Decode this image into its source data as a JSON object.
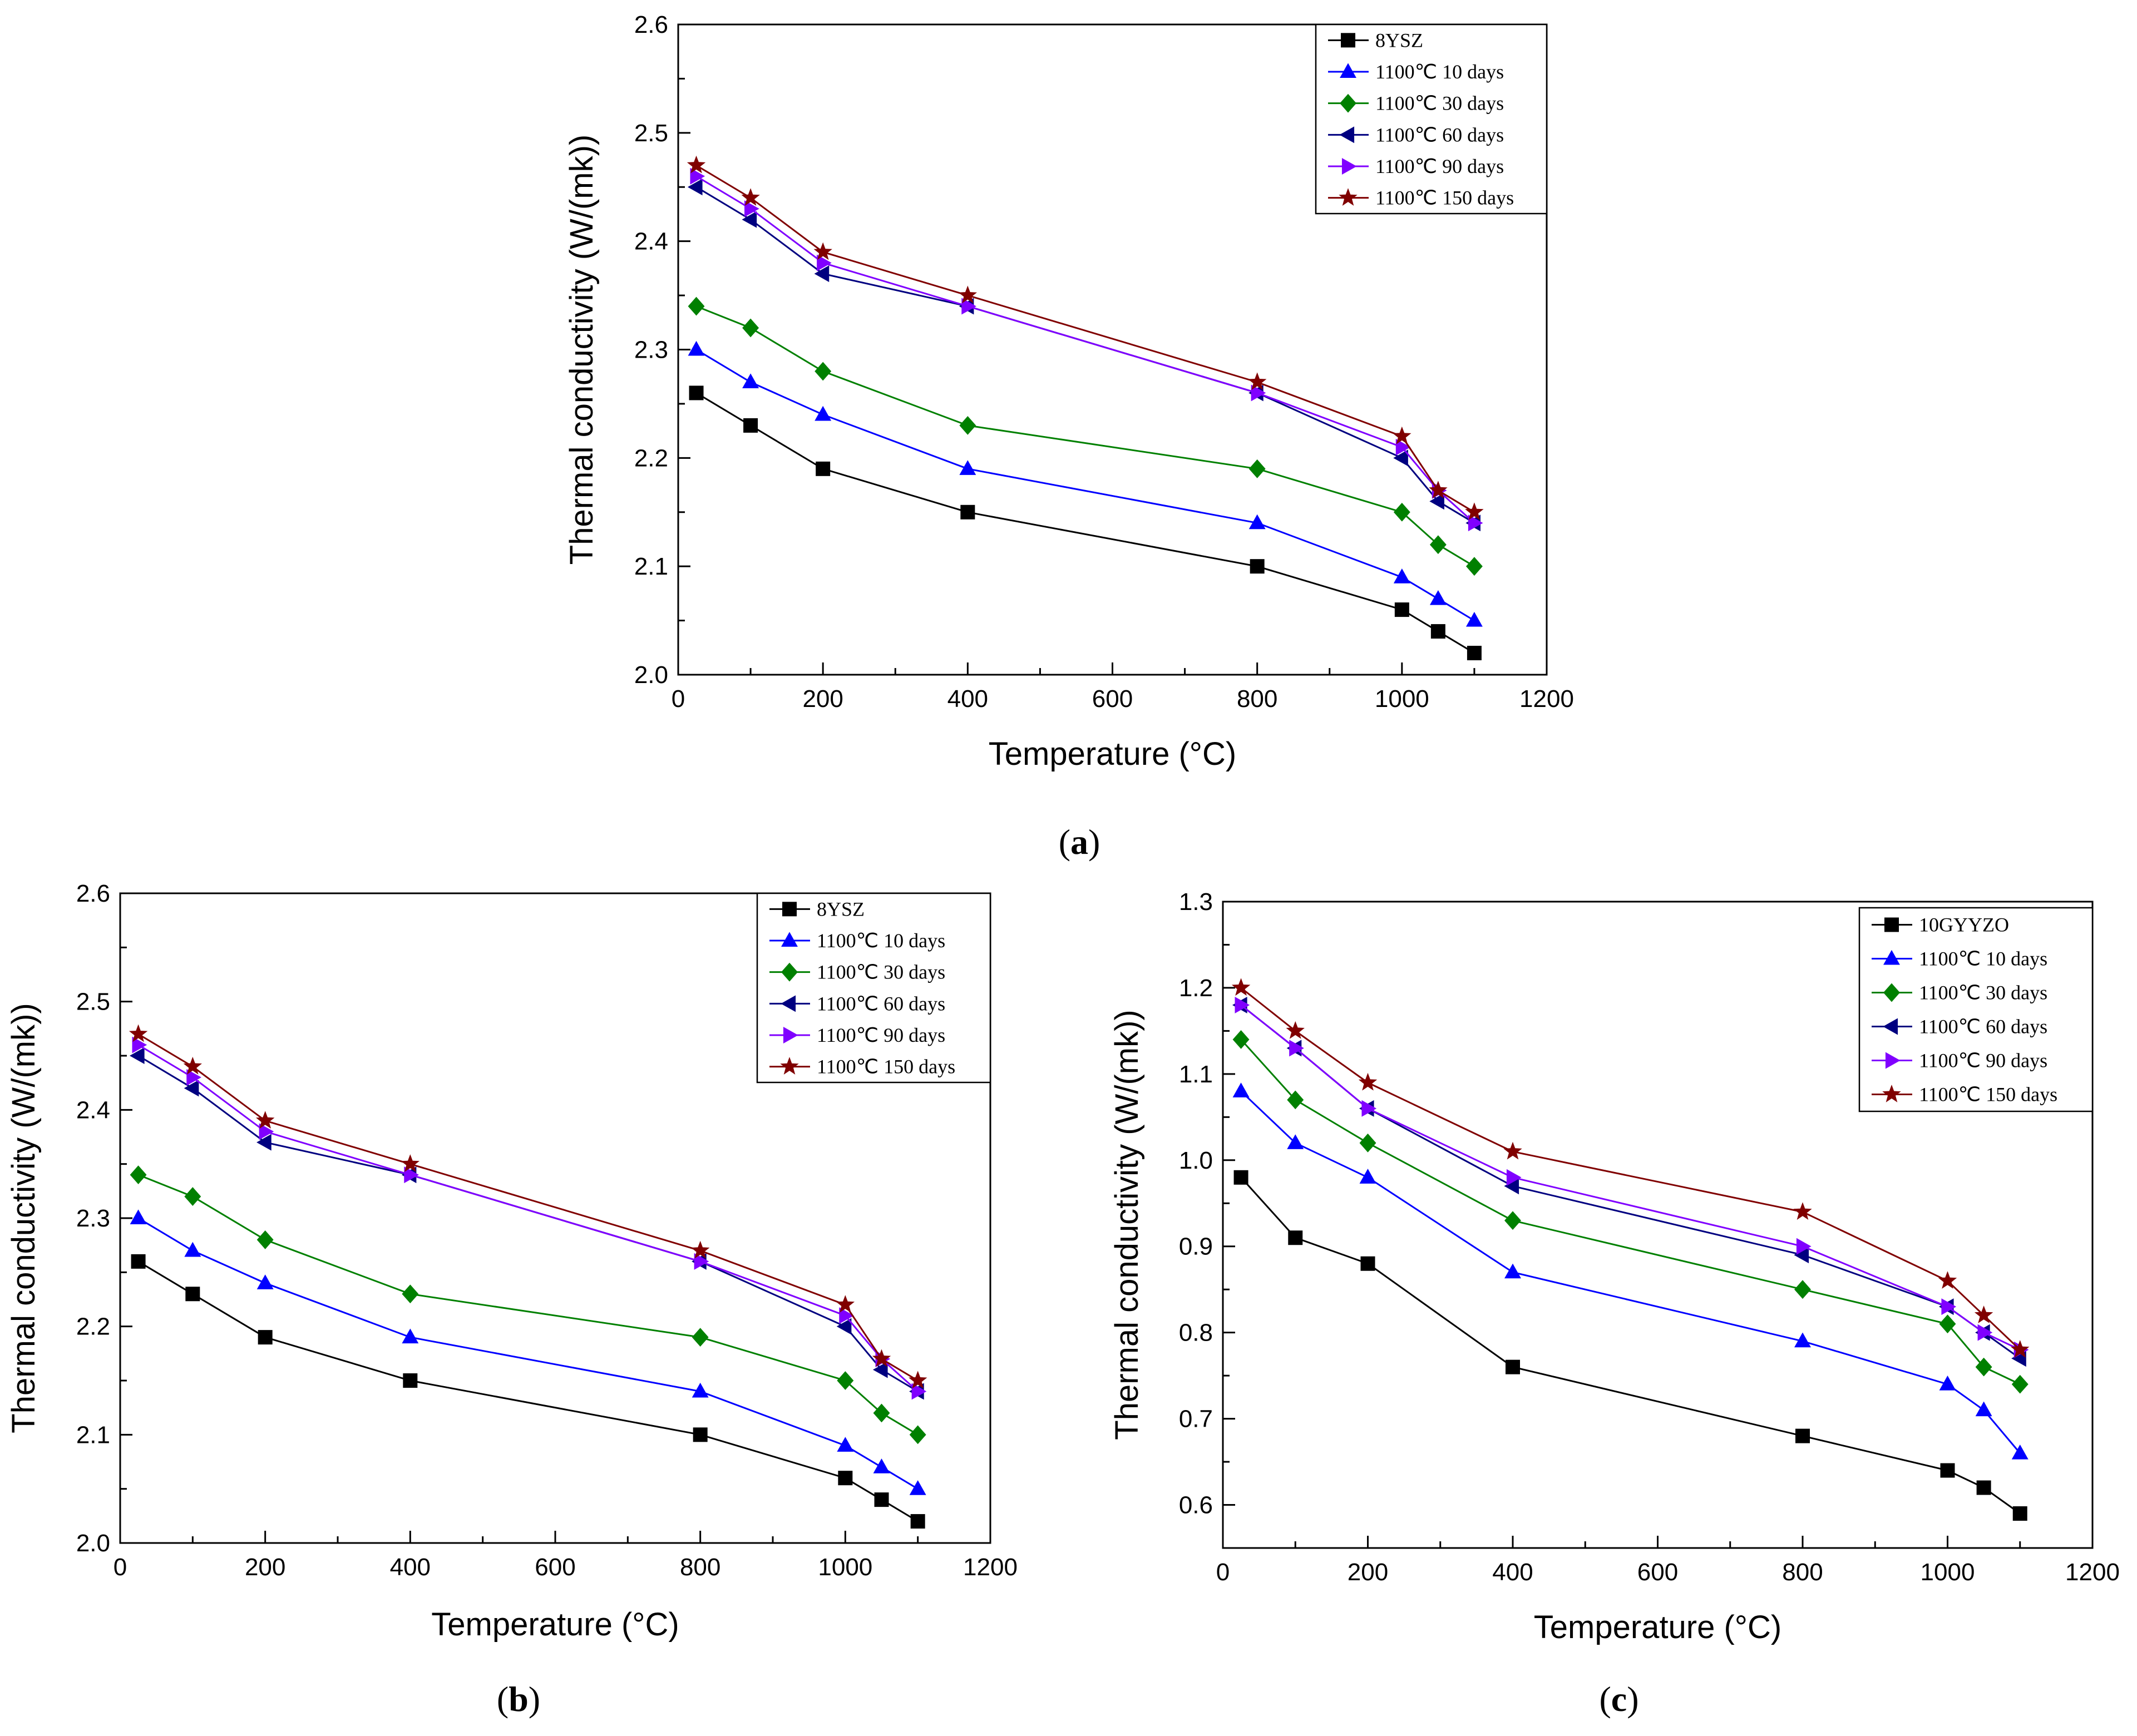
{
  "colors": {
    "8YSZ": "#000000",
    "10GYYZO": "#000000",
    "10_days": "#0000ff",
    "30_days": "#008000",
    "60_days": "#000080",
    "90_days": "#8000ff",
    "150_days": "#800000"
  },
  "chart_data": [
    {
      "type": "line",
      "panel_label": "(a)",
      "xlabel": "Temperature (°C)",
      "ylabel": "Thermal conductivity (W/(mk))",
      "xlim": [
        0,
        1200
      ],
      "ylim": [
        2.0,
        2.6
      ],
      "x_ticks": [
        0,
        200,
        400,
        600,
        800,
        1000,
        1200
      ],
      "y_ticks": [
        2.0,
        2.1,
        2.2,
        2.3,
        2.4,
        2.5,
        2.6
      ],
      "y_tick_decimals": 1,
      "legend_position": "top-right",
      "grid": false,
      "x": [
        25,
        100,
        200,
        400,
        800,
        1000,
        1050,
        1100
      ],
      "series": [
        {
          "name": "8YSZ",
          "color": "#000000",
          "marker": "square",
          "values": [
            2.26,
            2.23,
            2.19,
            2.15,
            2.1,
            2.06,
            2.04,
            2.02
          ]
        },
        {
          "name": "1100℃ 10 days",
          "color": "#0000ff",
          "marker": "triangle-up",
          "values": [
            2.3,
            2.27,
            2.24,
            2.19,
            2.14,
            2.09,
            2.07,
            2.05
          ]
        },
        {
          "name": "1100℃ 30 days",
          "color": "#008000",
          "marker": "diamond",
          "values": [
            2.34,
            2.32,
            2.28,
            2.23,
            2.19,
            2.15,
            2.12,
            2.1
          ]
        },
        {
          "name": "1100℃ 60 days",
          "color": "#000080",
          "marker": "triangle-left",
          "values": [
            2.45,
            2.42,
            2.37,
            2.34,
            2.26,
            2.2,
            2.16,
            2.14
          ]
        },
        {
          "name": "1100℃ 90 days",
          "color": "#8000ff",
          "marker": "triangle-right",
          "values": [
            2.46,
            2.43,
            2.38,
            2.34,
            2.26,
            2.21,
            2.17,
            2.14
          ]
        },
        {
          "name": "1100℃ 150 days",
          "color": "#800000",
          "marker": "star",
          "values": [
            2.47,
            2.44,
            2.39,
            2.35,
            2.27,
            2.22,
            2.17,
            2.15
          ]
        }
      ]
    },
    {
      "type": "line",
      "panel_label": "(b)",
      "xlabel": "Temperature (°C)",
      "ylabel": "Thermal conductivity (W/(mk))",
      "xlim": [
        0,
        1200
      ],
      "ylim": [
        2.0,
        2.6
      ],
      "x_ticks": [
        0,
        200,
        400,
        600,
        800,
        1000,
        1200
      ],
      "y_ticks": [
        2.0,
        2.1,
        2.2,
        2.3,
        2.4,
        2.5,
        2.6
      ],
      "y_tick_decimals": 1,
      "legend_position": "top-right",
      "grid": false,
      "x": [
        25,
        100,
        200,
        400,
        800,
        1000,
        1050,
        1100
      ],
      "series": [
        {
          "name": "8YSZ",
          "color": "#000000",
          "marker": "square",
          "values": [
            2.26,
            2.23,
            2.19,
            2.15,
            2.1,
            2.06,
            2.04,
            2.02
          ]
        },
        {
          "name": "1100℃ 10 days",
          "color": "#0000ff",
          "marker": "triangle-up",
          "values": [
            2.3,
            2.27,
            2.24,
            2.19,
            2.14,
            2.09,
            2.07,
            2.05
          ]
        },
        {
          "name": "1100℃ 30 days",
          "color": "#008000",
          "marker": "diamond",
          "values": [
            2.34,
            2.32,
            2.28,
            2.23,
            2.19,
            2.15,
            2.12,
            2.1
          ]
        },
        {
          "name": "1100℃ 60 days",
          "color": "#000080",
          "marker": "triangle-left",
          "values": [
            2.45,
            2.42,
            2.37,
            2.34,
            2.26,
            2.2,
            2.16,
            2.14
          ]
        },
        {
          "name": "1100℃ 90 days",
          "color": "#8000ff",
          "marker": "triangle-right",
          "values": [
            2.46,
            2.43,
            2.38,
            2.34,
            2.26,
            2.21,
            2.17,
            2.14
          ]
        },
        {
          "name": "1100℃ 150 days",
          "color": "#800000",
          "marker": "star",
          "values": [
            2.47,
            2.44,
            2.39,
            2.35,
            2.27,
            2.22,
            2.17,
            2.15
          ]
        }
      ]
    },
    {
      "type": "line",
      "panel_label": "(c)",
      "xlabel": "Temperature (°C)",
      "ylabel": "Thermal conductivity (W/(mk))",
      "xlim": [
        0,
        1200
      ],
      "ylim": [
        0.55,
        1.3
      ],
      "x_ticks": [
        0,
        200,
        400,
        600,
        800,
        1000,
        1200
      ],
      "y_ticks": [
        0.6,
        0.7,
        0.8,
        0.9,
        1.0,
        1.1,
        1.2,
        1.3
      ],
      "y_tick_decimals": 1,
      "legend_position": "top-right",
      "grid": false,
      "x": [
        25,
        100,
        200,
        400,
        800,
        1000,
        1050,
        1100
      ],
      "series": [
        {
          "name": "10GYYZO",
          "color": "#000000",
          "marker": "square",
          "values": [
            0.98,
            0.91,
            0.88,
            0.76,
            0.68,
            0.64,
            0.62,
            0.59
          ]
        },
        {
          "name": "1100℃ 10 days",
          "color": "#0000ff",
          "marker": "triangle-up",
          "values": [
            1.08,
            1.02,
            0.98,
            0.87,
            0.79,
            0.74,
            0.71,
            0.66
          ]
        },
        {
          "name": "1100℃ 30 days",
          "color": "#008000",
          "marker": "diamond",
          "values": [
            1.14,
            1.07,
            1.02,
            0.93,
            0.85,
            0.81,
            0.76,
            0.74
          ]
        },
        {
          "name": "1100℃ 60 days",
          "color": "#000080",
          "marker": "triangle-left",
          "values": [
            1.18,
            1.13,
            1.06,
            0.97,
            0.89,
            0.83,
            0.8,
            0.77
          ]
        },
        {
          "name": "1100℃ 90 days",
          "color": "#8000ff",
          "marker": "triangle-right",
          "values": [
            1.18,
            1.13,
            1.06,
            0.98,
            0.9,
            0.83,
            0.8,
            0.78
          ]
        },
        {
          "name": "1100℃ 150 days",
          "color": "#800000",
          "marker": "star",
          "values": [
            1.2,
            1.15,
            1.09,
            1.01,
            0.94,
            0.86,
            0.82,
            0.78
          ]
        }
      ]
    }
  ]
}
